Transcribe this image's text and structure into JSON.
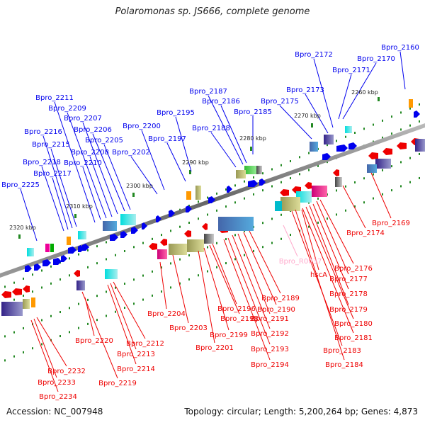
{
  "title": "Polaromonas sp. JS666, complete genome",
  "footer": {
    "accession": "Accession: NC_007948",
    "summary": "Topology: circular; Length: 5,200,264 bp; Genes: 4,873"
  },
  "colors": {
    "forward": "#0000ee",
    "reverse": "#ee0000",
    "highlight": "#ffaacc",
    "axis": "#777777",
    "tick": "#228822"
  },
  "scale_ticks": [
    "2260 kbp",
    "2270 kbp",
    "2280 kbp",
    "2290 kbp",
    "2300 kbp",
    "2310 kbp",
    "2320 kbp"
  ],
  "forward_labels": [
    "Bpro_2160",
    "Bpro_2170",
    "Bpro_2171",
    "Bpro_2172",
    "Bpro_2173",
    "Bpro_2175",
    "Bpro_2185",
    "Bpro_2186",
    "Bpro_2187",
    "Bpro_2188",
    "Bpro_2195",
    "Bpro_2197",
    "Bpro_2200",
    "Bpro_2202",
    "Bpro_2205",
    "Bpro_2206",
    "Bpro_2207",
    "Bpro_2208",
    "Bpro_2209",
    "Bpro_2210",
    "Bpro_2211",
    "Bpro_2215",
    "Bpro_2216",
    "Bpro_2217",
    "Bpro_2218",
    "Bpro_2225"
  ],
  "reverse_labels": [
    "Bpro_2169",
    "Bpro_2174",
    "Bpro_2176",
    "Bpro_2177",
    "Bpro_2178",
    "Bpro_2179",
    "Bpro_2180",
    "Bpro_2181",
    "Bpro_2183",
    "Bpro_2184",
    "Bpro_2189",
    "Bpro_2190",
    "Bpro_2191",
    "Bpro_2192",
    "Bpro_2193",
    "Bpro_2194",
    "Bpro_2196",
    "Bpro_2198",
    "Bpro_2199",
    "Bpro_2201",
    "Bpro_2203",
    "Bpro_2204",
    "Bpro_2212",
    "Bpro_2213",
    "Bpro_2214",
    "Bpro_2219",
    "Bpro_2220",
    "Bpro_2232",
    "Bpro_2233",
    "Bpro_2234",
    "hscA"
  ],
  "highlight_labels": [
    "Bpro_R0037"
  ]
}
